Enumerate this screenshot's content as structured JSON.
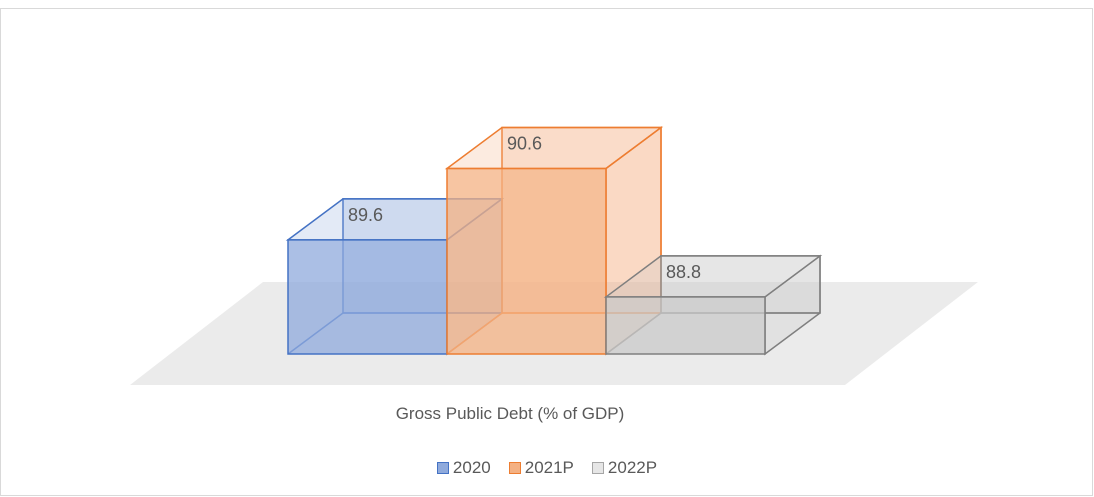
{
  "chart_data": {
    "type": "bar",
    "categories": [
      "Gross Public Debt (% of GDP)"
    ],
    "series": [
      {
        "name": "2020",
        "values": [
          89.6
        ],
        "color": "#4472c4",
        "fill": "#8faadc"
      },
      {
        "name": "2021P",
        "values": [
          90.6
        ],
        "color": "#ed7d31",
        "fill": "#f4b183"
      },
      {
        "name": "2022P",
        "values": [
          88.8
        ],
        "color": "#7f7f7f",
        "fill": "#c9c9c9"
      }
    ],
    "data_labels": [
      "89.6",
      "90.6",
      "88.8"
    ],
    "title": "",
    "xlabel": "",
    "ylabel": "",
    "ylim": [
      88,
      91
    ],
    "grid": false,
    "legend": "bottom"
  }
}
